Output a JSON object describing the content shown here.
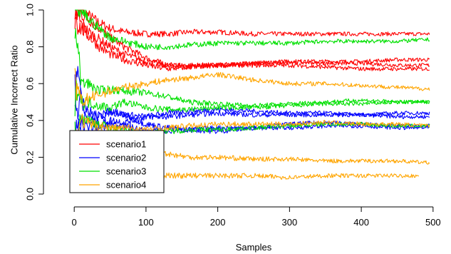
{
  "chart_data": {
    "type": "line",
    "title": "",
    "xlabel": "Samples",
    "ylabel": "Cumulative Incorrect Ratio",
    "xlim": [
      0,
      500
    ],
    "ylim": [
      0,
      1
    ],
    "xticks": [
      0,
      100,
      200,
      300,
      400,
      500
    ],
    "xtick_labels": [
      "0",
      "100",
      "200",
      "300",
      "400",
      "500"
    ],
    "yticks": [
      0.0,
      0.2,
      0.4,
      0.6,
      0.8,
      1.0
    ],
    "ytick_labels": [
      "0.0",
      "0.2",
      "0.4",
      "0.6",
      "0.8",
      "1.0"
    ],
    "legend_position": "bottom-left",
    "grid": false,
    "series": [
      {
        "name": "scenario1",
        "color": "#ff0000",
        "runs": [
          {
            "x": [
              1,
              5,
              10,
              20,
              35,
              50,
              70,
              100,
              130,
              160,
              200,
              250,
              300,
              350,
              400,
              450,
              495
            ],
            "y": [
              1.0,
              1.0,
              1.0,
              0.97,
              0.93,
              0.9,
              0.88,
              0.87,
              0.87,
              0.88,
              0.88,
              0.87,
              0.87,
              0.87,
              0.87,
              0.87,
              0.87
            ]
          },
          {
            "x": [
              1,
              5,
              10,
              20,
              35,
              50,
              70,
              100,
              130,
              160,
              200,
              250,
              300,
              350,
              400,
              450,
              495
            ],
            "y": [
              1.0,
              1.0,
              0.98,
              0.95,
              0.9,
              0.85,
              0.8,
              0.74,
              0.7,
              0.69,
              0.7,
              0.71,
              0.72,
              0.72,
              0.72,
              0.73,
              0.73
            ]
          },
          {
            "x": [
              1,
              5,
              10,
              20,
              35,
              50,
              70,
              100,
              130,
              160,
              200,
              250,
              300,
              350,
              400,
              450,
              495
            ],
            "y": [
              1.0,
              0.96,
              0.92,
              0.88,
              0.84,
              0.8,
              0.76,
              0.72,
              0.7,
              0.7,
              0.7,
              0.71,
              0.72,
              0.71,
              0.71,
              0.7,
              0.7
            ]
          },
          {
            "x": [
              1,
              5,
              10,
              20,
              35,
              50,
              70,
              100,
              130,
              160,
              200,
              250,
              300,
              350,
              400,
              450,
              495
            ],
            "y": [
              1.0,
              0.92,
              0.9,
              0.86,
              0.8,
              0.76,
              0.73,
              0.7,
              0.68,
              0.69,
              0.7,
              0.7,
              0.7,
              0.69,
              0.68,
              0.68,
              0.68
            ]
          }
        ]
      },
      {
        "name": "scenario2",
        "color": "#0000ff",
        "runs": [
          {
            "x": [
              1,
              5,
              10,
              20,
              35,
              50,
              70,
              100,
              130,
              160,
              200,
              250,
              300,
              350,
              400,
              450,
              495
            ],
            "y": [
              0.6,
              0.45,
              0.55,
              0.45,
              0.42,
              0.45,
              0.43,
              0.42,
              0.44,
              0.45,
              0.46,
              0.45,
              0.44,
              0.44,
              0.43,
              0.42,
              0.42
            ]
          },
          {
            "x": [
              1,
              5,
              10,
              20,
              35,
              50,
              70,
              100,
              130,
              160,
              200,
              250,
              300,
              350,
              400,
              450,
              495
            ],
            "y": [
              0.3,
              0.38,
              0.42,
              0.4,
              0.38,
              0.4,
              0.39,
              0.42,
              0.42,
              0.43,
              0.44,
              0.43,
              0.43,
              0.43,
              0.43,
              0.44,
              0.44
            ]
          },
          {
            "x": [
              1,
              5,
              10,
              20,
              35,
              50,
              70,
              100,
              130,
              160,
              200,
              250,
              300,
              350,
              400,
              450,
              495
            ],
            "y": [
              0.5,
              0.7,
              0.48,
              0.43,
              0.42,
              0.45,
              0.43,
              0.38,
              0.36,
              0.35,
              0.34,
              0.36,
              0.38,
              0.39,
              0.38,
              0.37,
              0.37
            ]
          },
          {
            "x": [
              1,
              5,
              10,
              20,
              35,
              50,
              70,
              100,
              130,
              160,
              200,
              250,
              300,
              350,
              400,
              450,
              495
            ],
            "y": [
              0.0,
              0.36,
              0.38,
              0.37,
              0.35,
              0.38,
              0.37,
              0.34,
              0.34,
              0.35,
              0.36,
              0.36,
              0.36,
              0.37,
              0.37,
              0.36,
              0.36
            ]
          }
        ]
      },
      {
        "name": "scenario3",
        "color": "#00e000",
        "runs": [
          {
            "x": [
              1,
              5,
              10,
              20,
              35,
              50,
              70,
              100,
              130,
              160,
              200,
              250,
              300,
              350,
              400,
              450,
              495
            ],
            "y": [
              1.0,
              1.0,
              1.0,
              0.95,
              0.9,
              0.85,
              0.83,
              0.8,
              0.8,
              0.81,
              0.82,
              0.82,
              0.82,
              0.83,
              0.83,
              0.83,
              0.84
            ]
          },
          {
            "x": [
              1,
              5,
              10,
              20,
              35,
              50,
              70,
              100,
              130,
              160,
              200,
              250,
              300,
              350,
              400,
              450,
              495
            ],
            "y": [
              0.9,
              0.8,
              0.6,
              0.6,
              0.56,
              0.57,
              0.56,
              0.55,
              0.53,
              0.5,
              0.49,
              0.48,
              0.49,
              0.5,
              0.51,
              0.5,
              0.5
            ]
          },
          {
            "x": [
              1,
              5,
              10,
              20,
              35,
              50,
              70,
              100,
              130,
              160,
              200,
              250,
              300,
              350,
              400,
              450,
              495
            ],
            "y": [
              0.5,
              0.6,
              0.5,
              0.5,
              0.48,
              0.47,
              0.5,
              0.47,
              0.46,
              0.46,
              0.47,
              0.47,
              0.48,
              0.49,
              0.49,
              0.5,
              0.5
            ]
          },
          {
            "x": [
              1,
              5,
              10,
              20,
              35,
              50,
              70,
              100,
              130,
              160,
              200,
              250,
              300,
              350,
              400,
              450,
              495
            ],
            "y": [
              0.3,
              0.35,
              0.42,
              0.4,
              0.38,
              0.36,
              0.34,
              0.33,
              0.34,
              0.35,
              0.35,
              0.36,
              0.37,
              0.38,
              0.38,
              0.37,
              0.37
            ]
          }
        ]
      },
      {
        "name": "scenario4",
        "color": "#ffa500",
        "runs": [
          {
            "x": [
              1,
              5,
              10,
              20,
              35,
              50,
              70,
              100,
              130,
              160,
              200,
              250,
              300,
              350,
              400,
              450,
              495
            ],
            "y": [
              0.6,
              0.55,
              0.5,
              0.52,
              0.54,
              0.56,
              0.58,
              0.6,
              0.62,
              0.63,
              0.65,
              0.62,
              0.6,
              0.6,
              0.59,
              0.58,
              0.57
            ]
          },
          {
            "x": [
              1,
              5,
              10,
              20,
              35,
              50,
              70,
              100,
              130,
              160,
              200,
              250,
              300,
              350,
              400,
              450,
              495
            ],
            "y": [
              0.3,
              0.35,
              0.4,
              0.38,
              0.37,
              0.36,
              0.36,
              0.35,
              0.36,
              0.37,
              0.38,
              0.38,
              0.38,
              0.39,
              0.38,
              0.38,
              0.37
            ]
          },
          {
            "x": [
              1,
              5,
              10,
              20,
              35,
              50,
              70,
              100,
              130,
              160,
              200,
              250,
              300,
              350,
              400,
              450,
              495
            ],
            "y": [
              0.3,
              0.28,
              0.3,
              0.28,
              0.26,
              0.25,
              0.25,
              0.23,
              0.22,
              0.2,
              0.2,
              0.19,
              0.19,
              0.18,
              0.18,
              0.18,
              0.17
            ]
          },
          {
            "x": [
              1,
              5,
              10,
              20,
              35,
              50,
              70,
              100,
              130,
              160,
              200,
              250,
              300,
              350,
              400,
              450,
              480
            ],
            "y": [
              0.1,
              0.15,
              0.12,
              0.11,
              0.1,
              0.1,
              0.09,
              0.09,
              0.1,
              0.1,
              0.1,
              0.1,
              0.09,
              0.1,
              0.1,
              0.1,
              0.1
            ]
          }
        ]
      }
    ]
  }
}
